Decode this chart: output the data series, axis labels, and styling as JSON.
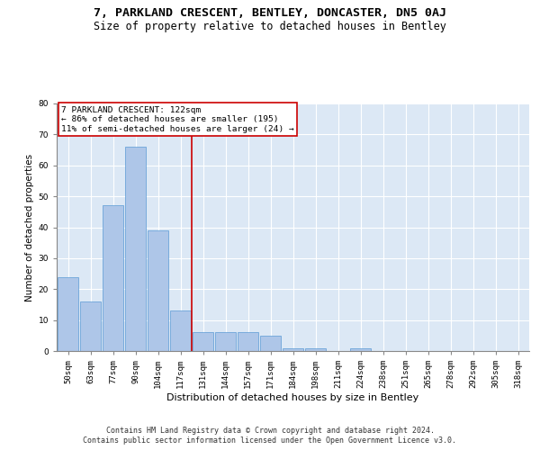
{
  "title": "7, PARKLAND CRESCENT, BENTLEY, DONCASTER, DN5 0AJ",
  "subtitle": "Size of property relative to detached houses in Bentley",
  "xlabel": "Distribution of detached houses by size in Bentley",
  "ylabel": "Number of detached properties",
  "bar_labels": [
    "50sqm",
    "63sqm",
    "77sqm",
    "90sqm",
    "104sqm",
    "117sqm",
    "131sqm",
    "144sqm",
    "157sqm",
    "171sqm",
    "184sqm",
    "198sqm",
    "211sqm",
    "224sqm",
    "238sqm",
    "251sqm",
    "265sqm",
    "278sqm",
    "292sqm",
    "305sqm",
    "318sqm"
  ],
  "bar_values": [
    24,
    16,
    47,
    66,
    39,
    13,
    6,
    6,
    6,
    5,
    1,
    1,
    0,
    1,
    0,
    0,
    0,
    0,
    0,
    0,
    0
  ],
  "bar_color": "#aec6e8",
  "bar_edge_color": "#5b9bd5",
  "background_color": "#dce8f5",
  "grid_color": "#ffffff",
  "property_line_x": 5.5,
  "property_line_color": "#cc0000",
  "annotation_box_text": "7 PARKLAND CRESCENT: 122sqm\n← 86% of detached houses are smaller (195)\n11% of semi-detached houses are larger (24) →",
  "annotation_box_color": "#cc0000",
  "ylim": [
    0,
    80
  ],
  "yticks": [
    0,
    10,
    20,
    30,
    40,
    50,
    60,
    70,
    80
  ],
  "footer_text": "Contains HM Land Registry data © Crown copyright and database right 2024.\nContains public sector information licensed under the Open Government Licence v3.0.",
  "title_fontsize": 9.5,
  "subtitle_fontsize": 8.5,
  "xlabel_fontsize": 8,
  "ylabel_fontsize": 7.5,
  "tick_fontsize": 6.5,
  "annotation_fontsize": 6.8,
  "footer_fontsize": 6.0
}
